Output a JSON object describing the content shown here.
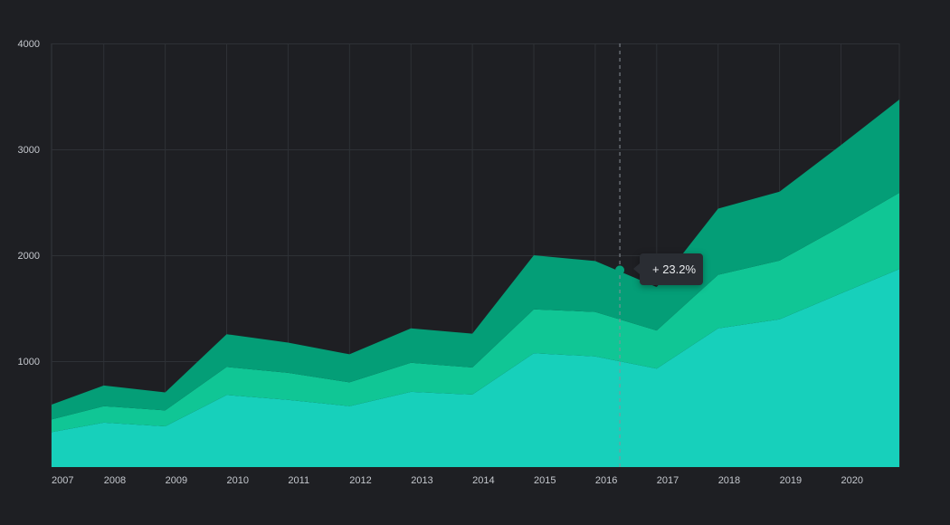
{
  "chart_data": {
    "type": "area",
    "stacked": true,
    "x": [
      "2007",
      "2008",
      "2009",
      "2010",
      "2011",
      "2012",
      "2013",
      "2014",
      "2015",
      "2016",
      "2017",
      "2018",
      "2019",
      "2020"
    ],
    "x_extent": [
      2007,
      2020.8
    ],
    "ylim": [
      0,
      4000
    ],
    "y_ticks": [
      "1000",
      "2000",
      "3000",
      "4000"
    ],
    "grid": true,
    "series": [
      {
        "color": "#17d0bb",
        "points": [
          [
            2007,
            330
          ],
          [
            2007.85,
            420
          ],
          [
            2008.85,
            385
          ],
          [
            2009.85,
            680
          ],
          [
            2010.85,
            635
          ],
          [
            2011.85,
            575
          ],
          [
            2012.85,
            710
          ],
          [
            2013.85,
            685
          ],
          [
            2014.85,
            1075
          ],
          [
            2015.85,
            1045
          ],
          [
            2016.85,
            930
          ],
          [
            2017.85,
            1310
          ],
          [
            2018.85,
            1395
          ],
          [
            2019.85,
            1640
          ],
          [
            2020.8,
            1870
          ]
        ]
      },
      {
        "color": "#10c695",
        "points": [
          [
            2007,
            120
          ],
          [
            2007.85,
            155
          ],
          [
            2008.85,
            150
          ],
          [
            2009.85,
            265
          ],
          [
            2010.85,
            255
          ],
          [
            2011.85,
            225
          ],
          [
            2012.85,
            275
          ],
          [
            2013.85,
            255
          ],
          [
            2014.85,
            415
          ],
          [
            2015.85,
            420
          ],
          [
            2016.85,
            360
          ],
          [
            2017.85,
            505
          ],
          [
            2018.85,
            555
          ],
          [
            2019.85,
            630
          ],
          [
            2020.8,
            720
          ]
        ]
      },
      {
        "color": "#049e77",
        "points": [
          [
            2007,
            140
          ],
          [
            2007.85,
            195
          ],
          [
            2008.85,
            170
          ],
          [
            2009.85,
            310
          ],
          [
            2010.85,
            285
          ],
          [
            2011.85,
            265
          ],
          [
            2012.85,
            325
          ],
          [
            2013.85,
            320
          ],
          [
            2014.85,
            510
          ],
          [
            2015.85,
            480
          ],
          [
            2016.85,
            410
          ],
          [
            2017.85,
            625
          ],
          [
            2018.85,
            650
          ],
          [
            2019.85,
            770
          ],
          [
            2020.8,
            880
          ]
        ]
      }
    ],
    "hover": {
      "x": 2016.25,
      "y": 1860,
      "label": "+ 23.2%"
    }
  }
}
